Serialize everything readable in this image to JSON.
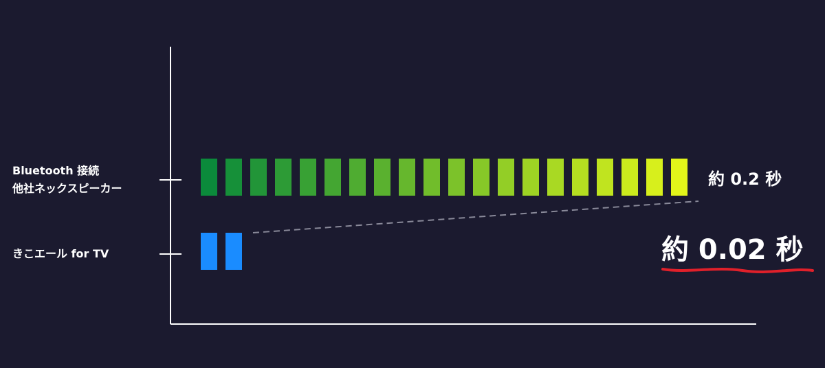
{
  "chart_data": {
    "type": "bar",
    "orientation": "horizontal",
    "categories": [
      "Bluetooth 接続\n他社ネックスピーカー",
      "きこエール for TV"
    ],
    "values": [
      0.2,
      0.02
    ],
    "value_labels": [
      "約 0.2 秒",
      "約 0.02 秒"
    ],
    "colors": [
      [
        "#0b8a3b",
        "#e2f51a"
      ],
      [
        "#1a8cff",
        "#1a8cff"
      ]
    ]
  }
}
